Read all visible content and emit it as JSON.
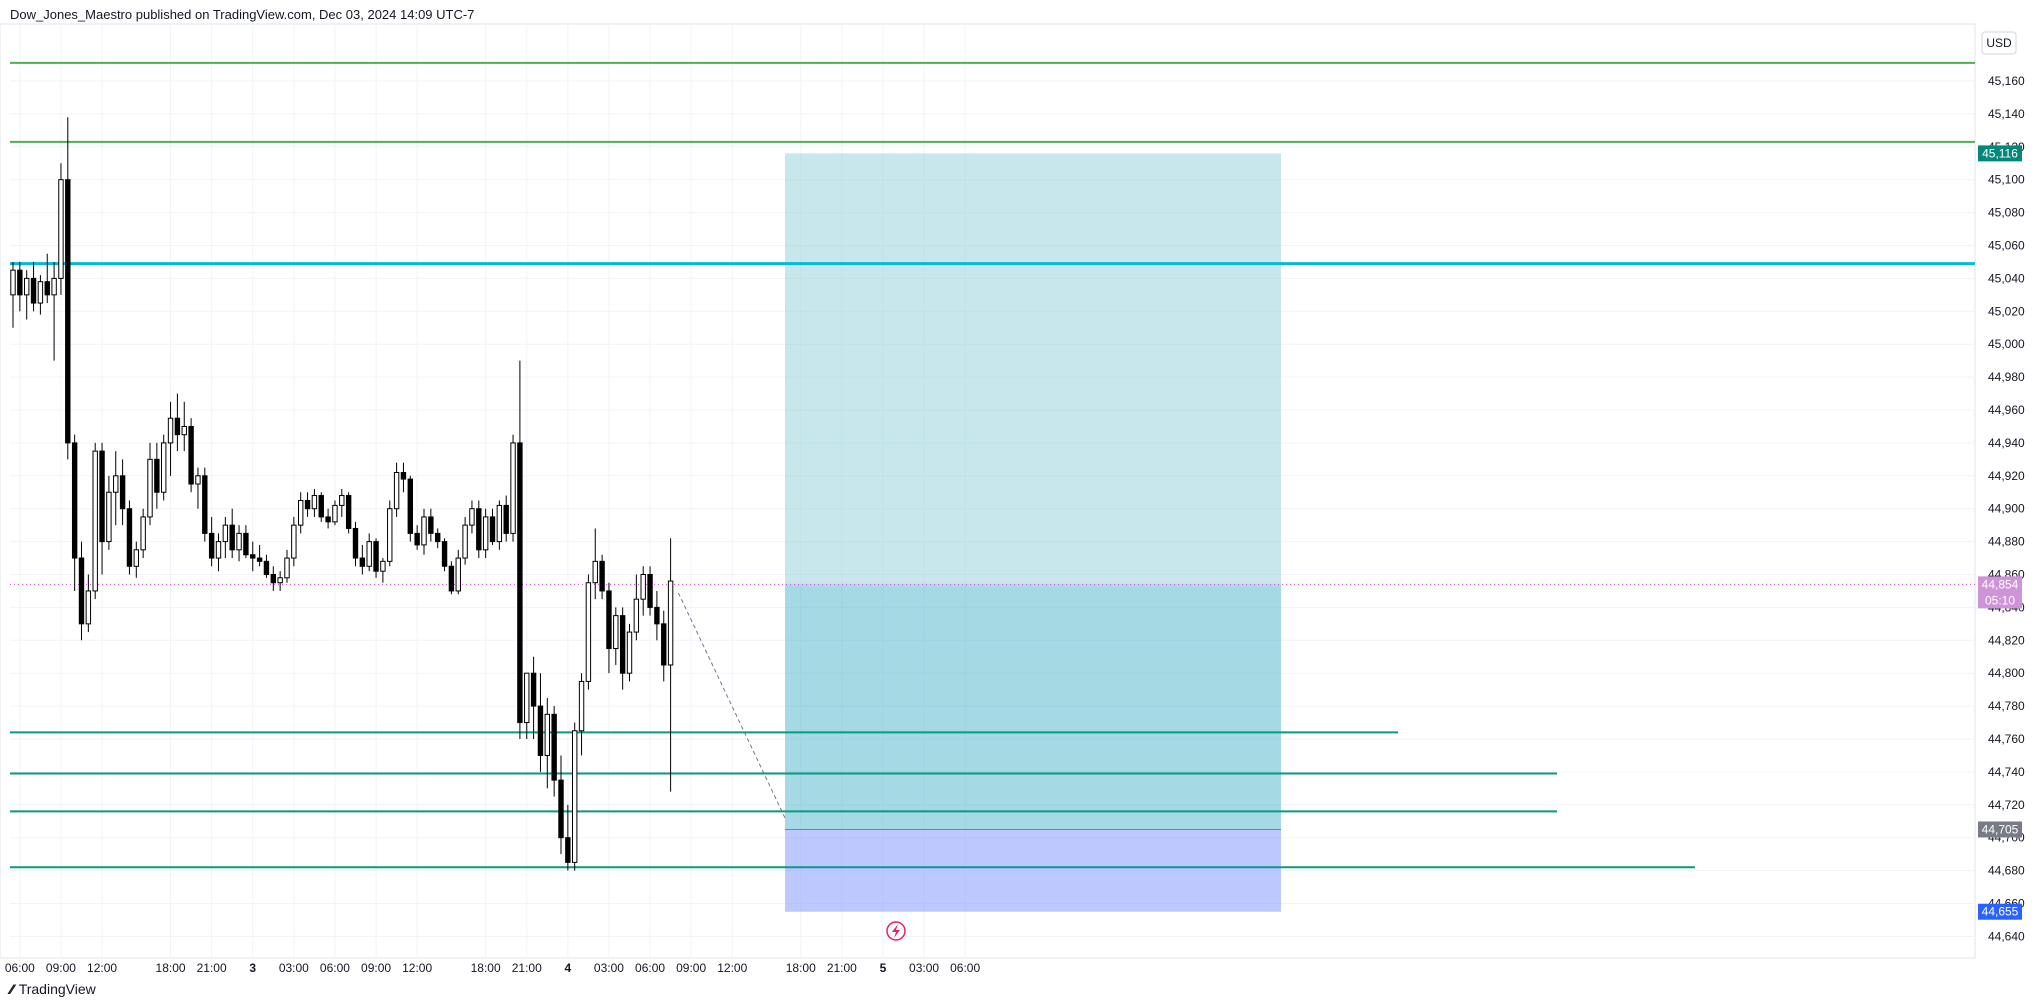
{
  "header": {
    "publisher_line": "Dow_Jones_Maestro published on TradingView.com, Dec 03, 2024 14:09 UTC-7"
  },
  "footer": {
    "logo_text": "TradingView"
  },
  "chart_data": {
    "type": "candlestick",
    "currency": "USD",
    "y_range": [
      44630,
      45190
    ],
    "y_ticks": [
      44640,
      44660,
      44680,
      44700,
      44720,
      44740,
      44760,
      44780,
      44800,
      44820,
      44840,
      44860,
      44880,
      44900,
      44920,
      44940,
      44960,
      44980,
      45000,
      45020,
      45040,
      45060,
      45080,
      45100,
      45120,
      45140,
      45160
    ],
    "x_ticks": [
      "06:00",
      "09:00",
      "12:00",
      "18:00",
      "21:00",
      "3",
      "03:00",
      "06:00",
      "09:00",
      "12:00",
      "18:00",
      "21:00",
      "4",
      "03:00",
      "06:00",
      "09:00",
      "12:00",
      "18:00",
      "21:00",
      "5",
      "03:00",
      "06:00"
    ],
    "x_tick_slots": [
      1,
      7,
      13,
      23,
      29,
      35,
      41,
      47,
      53,
      59,
      69,
      75,
      81,
      87,
      93,
      99,
      105,
      115,
      121,
      127,
      133,
      139
    ],
    "bars": [
      {
        "o": 45030,
        "h": 45050,
        "l": 45010,
        "c": 45045
      },
      {
        "o": 45045,
        "h": 45050,
        "l": 45020,
        "c": 45030
      },
      {
        "o": 45030,
        "h": 45045,
        "l": 45015,
        "c": 45040
      },
      {
        "o": 45040,
        "h": 45050,
        "l": 45020,
        "c": 45025
      },
      {
        "o": 45025,
        "h": 45042,
        "l": 45018,
        "c": 45038
      },
      {
        "o": 45038,
        "h": 45055,
        "l": 45025,
        "c": 45030
      },
      {
        "o": 45030,
        "h": 45050,
        "l": 44990,
        "c": 45040
      },
      {
        "o": 45040,
        "h": 45110,
        "l": 45030,
        "c": 45100
      },
      {
        "o": 45100,
        "h": 45138,
        "l": 44930,
        "c": 44940
      },
      {
        "o": 44940,
        "h": 44945,
        "l": 44850,
        "c": 44870
      },
      {
        "o": 44870,
        "h": 44880,
        "l": 44820,
        "c": 44830
      },
      {
        "o": 44830,
        "h": 44860,
        "l": 44825,
        "c": 44850
      },
      {
        "o": 44850,
        "h": 44940,
        "l": 44845,
        "c": 44935
      },
      {
        "o": 44935,
        "h": 44940,
        "l": 44860,
        "c": 44880
      },
      {
        "o": 44880,
        "h": 44920,
        "l": 44875,
        "c": 44910
      },
      {
        "o": 44910,
        "h": 44935,
        "l": 44890,
        "c": 44920
      },
      {
        "o": 44920,
        "h": 44930,
        "l": 44890,
        "c": 44900
      },
      {
        "o": 44900,
        "h": 44905,
        "l": 44860,
        "c": 44865
      },
      {
        "o": 44865,
        "h": 44880,
        "l": 44858,
        "c": 44875
      },
      {
        "o": 44875,
        "h": 44900,
        "l": 44870,
        "c": 44895
      },
      {
        "o": 44895,
        "h": 44940,
        "l": 44890,
        "c": 44930
      },
      {
        "o": 44930,
        "h": 44940,
        "l": 44900,
        "c": 44910
      },
      {
        "o": 44910,
        "h": 44945,
        "l": 44905,
        "c": 44940
      },
      {
        "o": 44940,
        "h": 44965,
        "l": 44920,
        "c": 44955
      },
      {
        "o": 44955,
        "h": 44970,
        "l": 44935,
        "c": 44945
      },
      {
        "o": 44945,
        "h": 44965,
        "l": 44935,
        "c": 44950
      },
      {
        "o": 44950,
        "h": 44955,
        "l": 44910,
        "c": 44915
      },
      {
        "o": 44915,
        "h": 44925,
        "l": 44900,
        "c": 44920
      },
      {
        "o": 44920,
        "h": 44925,
        "l": 44880,
        "c": 44885
      },
      {
        "o": 44885,
        "h": 44895,
        "l": 44865,
        "c": 44870
      },
      {
        "o": 44870,
        "h": 44885,
        "l": 44862,
        "c": 44880
      },
      {
        "o": 44880,
        "h": 44895,
        "l": 44870,
        "c": 44890
      },
      {
        "o": 44890,
        "h": 44900,
        "l": 44870,
        "c": 44875
      },
      {
        "o": 44875,
        "h": 44890,
        "l": 44868,
        "c": 44885
      },
      {
        "o": 44885,
        "h": 44890,
        "l": 44870,
        "c": 44872
      },
      {
        "o": 44872,
        "h": 44880,
        "l": 44862,
        "c": 44870
      },
      {
        "o": 44870,
        "h": 44878,
        "l": 44865,
        "c": 44868
      },
      {
        "o": 44868,
        "h": 44872,
        "l": 44858,
        "c": 44860
      },
      {
        "o": 44860,
        "h": 44865,
        "l": 44850,
        "c": 44855
      },
      {
        "o": 44855,
        "h": 44862,
        "l": 44850,
        "c": 44858
      },
      {
        "o": 44858,
        "h": 44875,
        "l": 44855,
        "c": 44870
      },
      {
        "o": 44870,
        "h": 44895,
        "l": 44865,
        "c": 44890
      },
      {
        "o": 44890,
        "h": 44910,
        "l": 44885,
        "c": 44905
      },
      {
        "o": 44905,
        "h": 44910,
        "l": 44895,
        "c": 44900
      },
      {
        "o": 44900,
        "h": 44912,
        "l": 44895,
        "c": 44908
      },
      {
        "o": 44908,
        "h": 44910,
        "l": 44892,
        "c": 44895
      },
      {
        "o": 44895,
        "h": 44900,
        "l": 44888,
        "c": 44892
      },
      {
        "o": 44892,
        "h": 44905,
        "l": 44890,
        "c": 44902
      },
      {
        "o": 44902,
        "h": 44912,
        "l": 44895,
        "c": 44908
      },
      {
        "o": 44908,
        "h": 44910,
        "l": 44885,
        "c": 44888
      },
      {
        "o": 44888,
        "h": 44892,
        "l": 44865,
        "c": 44870
      },
      {
        "o": 44870,
        "h": 44878,
        "l": 44860,
        "c": 44865
      },
      {
        "o": 44865,
        "h": 44885,
        "l": 44862,
        "c": 44880
      },
      {
        "o": 44880,
        "h": 44882,
        "l": 44858,
        "c": 44862
      },
      {
        "o": 44862,
        "h": 44870,
        "l": 44855,
        "c": 44868
      },
      {
        "o": 44868,
        "h": 44905,
        "l": 44865,
        "c": 44900
      },
      {
        "o": 44900,
        "h": 44928,
        "l": 44895,
        "c": 44922
      },
      {
        "o": 44922,
        "h": 44928,
        "l": 44910,
        "c": 44918
      },
      {
        "o": 44918,
        "h": 44920,
        "l": 44880,
        "c": 44885
      },
      {
        "o": 44885,
        "h": 44890,
        "l": 44875,
        "c": 44878
      },
      {
        "o": 44878,
        "h": 44900,
        "l": 44872,
        "c": 44895
      },
      {
        "o": 44895,
        "h": 44900,
        "l": 44880,
        "c": 44885
      },
      {
        "o": 44885,
        "h": 44888,
        "l": 44876,
        "c": 44880
      },
      {
        "o": 44880,
        "h": 44882,
        "l": 44862,
        "c": 44865
      },
      {
        "o": 44865,
        "h": 44868,
        "l": 44848,
        "c": 44850
      },
      {
        "o": 44850,
        "h": 44875,
        "l": 44848,
        "c": 44870
      },
      {
        "o": 44870,
        "h": 44895,
        "l": 44866,
        "c": 44890
      },
      {
        "o": 44890,
        "h": 44905,
        "l": 44885,
        "c": 44900
      },
      {
        "o": 44900,
        "h": 44905,
        "l": 44870,
        "c": 44875
      },
      {
        "o": 44875,
        "h": 44900,
        "l": 44870,
        "c": 44895
      },
      {
        "o": 44895,
        "h": 44900,
        "l": 44878,
        "c": 44880
      },
      {
        "o": 44880,
        "h": 44905,
        "l": 44875,
        "c": 44902
      },
      {
        "o": 44902,
        "h": 44908,
        "l": 44880,
        "c": 44885
      },
      {
        "o": 44885,
        "h": 44945,
        "l": 44880,
        "c": 44940
      },
      {
        "o": 44940,
        "h": 44990,
        "l": 44760,
        "c": 44770
      },
      {
        "o": 44770,
        "h": 44800,
        "l": 44760,
        "c": 44800
      },
      {
        "o": 44800,
        "h": 44810,
        "l": 44760,
        "c": 44780
      },
      {
        "o": 44780,
        "h": 44800,
        "l": 44740,
        "c": 44750
      },
      {
        "o": 44750,
        "h": 44785,
        "l": 44730,
        "c": 44775
      },
      {
        "o": 44775,
        "h": 44780,
        "l": 44725,
        "c": 44735
      },
      {
        "o": 44735,
        "h": 44750,
        "l": 44690,
        "c": 44700
      },
      {
        "o": 44700,
        "h": 44720,
        "l": 44680,
        "c": 44685
      },
      {
        "o": 44685,
        "h": 44770,
        "l": 44680,
        "c": 44765
      },
      {
        "o": 44765,
        "h": 44800,
        "l": 44750,
        "c": 44795
      },
      {
        "o": 44795,
        "h": 44860,
        "l": 44790,
        "c": 44855
      },
      {
        "o": 44855,
        "h": 44888,
        "l": 44845,
        "c": 44868
      },
      {
        "o": 44868,
        "h": 44872,
        "l": 44845,
        "c": 44850
      },
      {
        "o": 44850,
        "h": 44855,
        "l": 44800,
        "c": 44815
      },
      {
        "o": 44815,
        "h": 44840,
        "l": 44805,
        "c": 44835
      },
      {
        "o": 44835,
        "h": 44840,
        "l": 44790,
        "c": 44800
      },
      {
        "o": 44800,
        "h": 44830,
        "l": 44795,
        "c": 44825
      },
      {
        "o": 44825,
        "h": 44860,
        "l": 44820,
        "c": 44845
      },
      {
        "o": 44845,
        "h": 44865,
        "l": 44835,
        "c": 44860
      },
      {
        "o": 44860,
        "h": 44865,
        "l": 44835,
        "c": 44840
      },
      {
        "o": 44840,
        "h": 44850,
        "l": 44820,
        "c": 44830
      },
      {
        "o": 44830,
        "h": 44838,
        "l": 44795,
        "c": 44805
      },
      {
        "o": 44805,
        "h": 44882,
        "l": 44728,
        "c": 44856
      }
    ],
    "levels": [
      {
        "price": 45171,
        "color": "#4caf50",
        "end": "full"
      },
      {
        "price": 45123,
        "color": "#4caf50",
        "end": "full"
      },
      {
        "price": 45049,
        "color": "#00bcd4",
        "end": "full"
      },
      {
        "price": 44764,
        "color": "#089981",
        "end": "partial1"
      },
      {
        "price": 44739,
        "color": "#089981",
        "end": "partial2"
      },
      {
        "price": 44716,
        "color": "#089981",
        "end": "partial2"
      },
      {
        "price": 44682,
        "color": "#089981",
        "end": "partial3"
      }
    ],
    "position": {
      "target": 45116,
      "entry": 44854,
      "stop": 44705,
      "bottom": 44655
    },
    "price_tags": [
      {
        "value": "45,116",
        "price": 45116,
        "color": "#00897b"
      },
      {
        "value": "44,854",
        "sub": "05:10",
        "price": 44854,
        "color": "#ce93d8"
      },
      {
        "value": "44,705",
        "price": 44705,
        "color": "#787b86"
      },
      {
        "value": "44,655",
        "price": 44655,
        "color": "#2962ff"
      }
    ],
    "current_price": 44854
  }
}
